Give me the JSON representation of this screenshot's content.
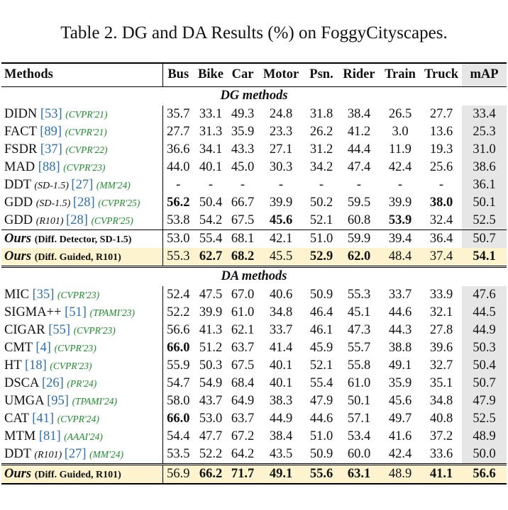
{
  "caption": "Table 2. DG and DA Results (%) on FoggyCityscapes.",
  "headers": [
    "Methods",
    "Bus",
    "Bike",
    "Car",
    "Motor",
    "Psn.",
    "Rider",
    "Train",
    "Truck",
    "mAP"
  ],
  "sections": {
    "dg": "DG methods",
    "da": "DA methods"
  },
  "dg_rows": [
    {
      "name": "DIDN",
      "sub": "",
      "cite": "[53]",
      "venue": "(CVPR'21)",
      "values": [
        "35.7",
        "33.1",
        "49.3",
        "24.8",
        "31.8",
        "38.4",
        "26.5",
        "27.7",
        "33.4"
      ]
    },
    {
      "name": "FACT",
      "sub": "",
      "cite": "[89]",
      "venue": "(CVPR'21)",
      "values": [
        "27.7",
        "31.3",
        "35.9",
        "23.3",
        "26.2",
        "41.2",
        "3.0",
        "13.6",
        "25.3"
      ]
    },
    {
      "name": "FSDR",
      "sub": "",
      "cite": "[37]",
      "venue": "(CVPR'22)",
      "values": [
        "36.6",
        "34.1",
        "43.3",
        "27.1",
        "31.2",
        "44.4",
        "11.9",
        "19.3",
        "31.0"
      ]
    },
    {
      "name": "MAD",
      "sub": "",
      "cite": "[88]",
      "venue": "(CVPR'23)",
      "values": [
        "44.0",
        "40.1",
        "45.0",
        "30.3",
        "34.2",
        "47.4",
        "42.4",
        "25.6",
        "38.6"
      ]
    },
    {
      "name": "DDT",
      "sub": "(SD-1.5)",
      "cite": "[27]",
      "venue": "(MM'24)",
      "values": [
        "-",
        "-",
        "-",
        "-",
        "-",
        "-",
        "-",
        "-",
        "36.1"
      ]
    },
    {
      "name": "GDD",
      "sub": "(SD-1.5)",
      "cite": "[28]",
      "venue": "(CVPR'25)",
      "values": [
        "56.2",
        "50.4",
        "66.7",
        "39.9",
        "50.2",
        "59.5",
        "39.9",
        "38.0",
        "50.1"
      ],
      "bold": [
        0,
        7
      ]
    },
    {
      "name": "GDD",
      "sub": "(R101)",
      "cite": "[28]",
      "venue": "(CVPR'25)",
      "values": [
        "53.8",
        "54.2",
        "67.5",
        "45.6",
        "52.1",
        "60.8",
        "53.9",
        "32.4",
        "52.5"
      ],
      "bold": [
        3,
        6
      ]
    }
  ],
  "ours_dg": [
    {
      "name": "Ours",
      "desc": "(Diff. Detector, SD-1.5)",
      "values": [
        "53.0",
        "55.4",
        "68.1",
        "42.1",
        "51.0",
        "59.9",
        "39.4",
        "36.4",
        "50.7"
      ],
      "bold": [],
      "highlight": false
    },
    {
      "name": "Ours",
      "desc": "(Diff. Guided, R101)",
      "values": [
        "55.3",
        "62.7",
        "68.2",
        "45.5",
        "52.9",
        "62.0",
        "48.4",
        "37.4",
        "54.1"
      ],
      "bold": [
        1,
        2,
        4,
        5,
        8
      ],
      "highlight": true
    }
  ],
  "da_rows": [
    {
      "name": "MIC",
      "sub": "",
      "cite": "[35]",
      "venue": "(CVPR'23)",
      "values": [
        "52.4",
        "47.5",
        "67.0",
        "40.6",
        "50.9",
        "55.3",
        "33.7",
        "33.9",
        "47.6"
      ]
    },
    {
      "name": "SIGMA++",
      "sub": "",
      "cite": "[51]",
      "venue": "(TPAMI'23)",
      "values": [
        "52.2",
        "39.9",
        "61.0",
        "34.8",
        "46.4",
        "45.1",
        "44.6",
        "32.1",
        "44.5"
      ]
    },
    {
      "name": "CIGAR",
      "sub": "",
      "cite": "[55]",
      "venue": "(CVPR'23)",
      "values": [
        "56.6",
        "41.3",
        "62.1",
        "33.7",
        "46.1",
        "47.3",
        "44.3",
        "27.8",
        "44.9"
      ]
    },
    {
      "name": "CMT",
      "sub": "",
      "cite": "[4]",
      "venue": "(CVPR'23)",
      "values": [
        "66.0",
        "51.2",
        "63.7",
        "41.4",
        "45.9",
        "55.7",
        "38.8",
        "39.6",
        "50.3"
      ],
      "bold": [
        0
      ]
    },
    {
      "name": "HT",
      "sub": "",
      "cite": "[18]",
      "venue": "(CVPR'23)",
      "values": [
        "55.9",
        "50.3",
        "67.5",
        "40.1",
        "52.1",
        "55.8",
        "49.1",
        "32.7",
        "50.4"
      ]
    },
    {
      "name": "DSCA",
      "sub": "",
      "cite": "[26]",
      "venue": "(PR'24)",
      "values": [
        "54.7",
        "54.9",
        "68.4",
        "40.1",
        "55.4",
        "61.0",
        "35.9",
        "35.1",
        "50.7"
      ]
    },
    {
      "name": "UMGA",
      "sub": "",
      "cite": "[95]",
      "venue": "(TPAMI'24)",
      "values": [
        "58.0",
        "43.7",
        "64.9",
        "38.3",
        "47.9",
        "50.1",
        "45.6",
        "34.8",
        "47.9"
      ]
    },
    {
      "name": "CAT",
      "sub": "",
      "cite": "[41]",
      "venue": "(CVPR'24)",
      "values": [
        "66.0",
        "53.0",
        "63.7",
        "44.9",
        "44.6",
        "57.1",
        "49.7",
        "40.8",
        "52.5"
      ],
      "bold": [
        0
      ]
    },
    {
      "name": "MTM",
      "sub": "",
      "cite": "[81]",
      "venue": "(AAAI'24)",
      "values": [
        "54.4",
        "47.7",
        "67.2",
        "38.4",
        "51.0",
        "53.4",
        "41.6",
        "37.2",
        "48.9"
      ]
    },
    {
      "name": "DDT",
      "sub": "(R101)",
      "cite": "[27]",
      "venue": "(MM'24)",
      "values": [
        "53.5",
        "52.2",
        "64.2",
        "43.5",
        "50.9",
        "60.0",
        "42.4",
        "33.6",
        "50.0"
      ]
    }
  ],
  "ours_da": {
    "name": "Ours",
    "desc": "(Diff. Guided, R101)",
    "values": [
      "56.9",
      "66.2",
      "71.7",
      "49.1",
      "55.6",
      "63.1",
      "48.9",
      "41.1",
      "56.6"
    ],
    "bold": [
      1,
      2,
      3,
      4,
      5,
      7,
      8
    ],
    "highlight": true
  },
  "colors": {
    "citation": "#2a6fb8",
    "venue": "#1a8f2a",
    "map_column": "#e6e6e6",
    "highlight_row": "#fdf3cf"
  }
}
